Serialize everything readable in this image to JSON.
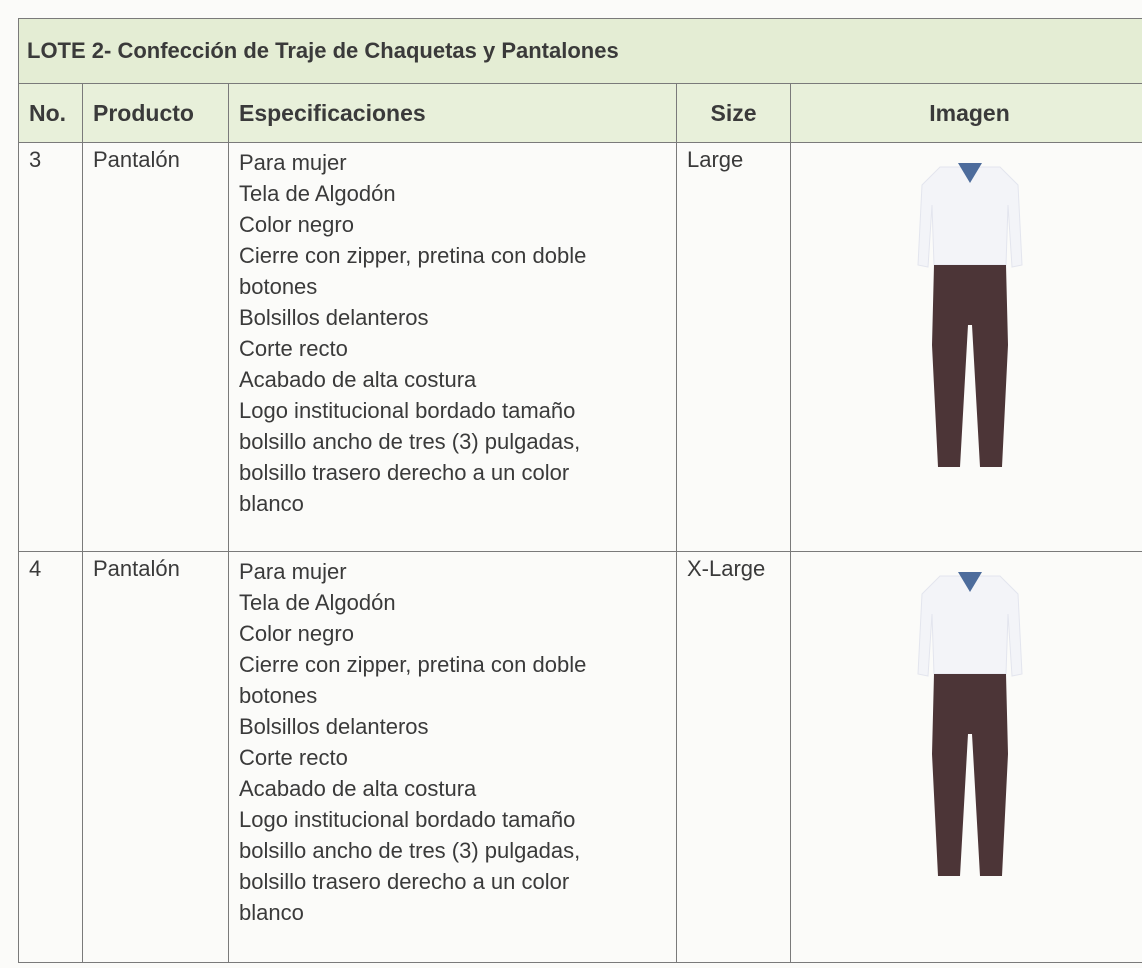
{
  "table": {
    "title": "LOTE 2- Confección de Traje de Chaquetas y Pantalones",
    "headers": [
      "No.",
      "Producto",
      "Especificaciones",
      "Size",
      "Imagen"
    ],
    "rows": [
      {
        "no": "3",
        "product": "Pantalón",
        "specs": [
          "Para mujer",
          "Tela de Algodón",
          "Color negro",
          "Cierre con zipper, pretina con doble",
          "botones",
          "Bolsillos delanteros",
          "Corte recto",
          "Acabado de alta costura",
          "Logo institucional bordado tamaño",
          "bolsillo ancho de tres (3) pulgadas,",
          "bolsillo trasero derecho a un color",
          "blanco"
        ],
        "size": "Large"
      },
      {
        "no": "4",
        "product": "Pantalón",
        "specs": [
          "Para mujer",
          "Tela de Algodón",
          "Color negro",
          "Cierre con zipper, pretina con doble",
          "botones",
          "Bolsillos delanteros",
          "Corte recto",
          "Acabado de alta costura",
          "Logo institucional bordado tamaño",
          "bolsillo ancho de tres (3) pulgadas,",
          "bolsillo trasero derecho a un color",
          "blanco"
        ],
        "size": "X-Large"
      }
    ]
  }
}
